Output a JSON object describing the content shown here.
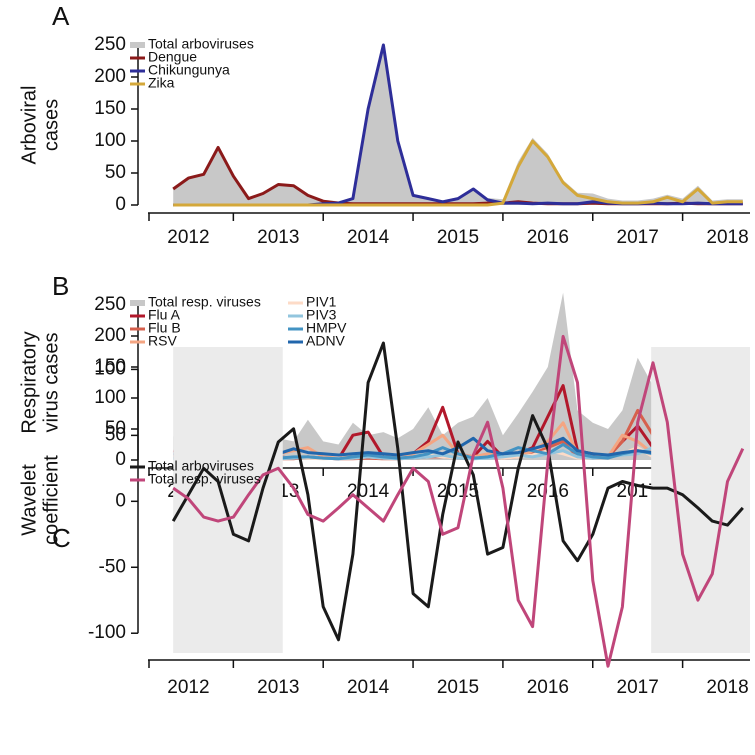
{
  "chart_data": [
    {
      "type": "line",
      "panel_label": "A",
      "ylabel": [
        "Arboviral",
        "cases"
      ],
      "x": [
        2012.33,
        2012.5,
        2012.67,
        2012.83,
        2013,
        2013.17,
        2013.33,
        2013.5,
        2013.67,
        2013.83,
        2014,
        2014.17,
        2014.33,
        2014.5,
        2014.67,
        2014.83,
        2015,
        2015.17,
        2015.33,
        2015.5,
        2015.67,
        2015.83,
        2016,
        2016.17,
        2016.33,
        2016.5,
        2016.67,
        2016.83,
        2017,
        2017.17,
        2017.33,
        2017.5,
        2017.67,
        2017.83,
        2018,
        2018.17,
        2018.33,
        2018.5,
        2018.67
      ],
      "xlim": [
        2012.05,
        2018.75
      ],
      "xticks": [
        {
          "value": 2012.5,
          "label": "2012"
        },
        {
          "value": 2013.5,
          "label": "2013"
        },
        {
          "value": 2014.5,
          "label": "2014"
        },
        {
          "value": 2015.5,
          "label": "2015"
        },
        {
          "value": 2016.5,
          "label": "2016"
        },
        {
          "value": 2017.5,
          "label": "2017"
        },
        {
          "value": 2018.5,
          "label": "2018"
        }
      ],
      "xtick_marks": [
        2013,
        2014,
        2015,
        2016,
        2017,
        2018
      ],
      "ylim": [
        0,
        250
      ],
      "yticks": [
        0,
        50,
        100,
        150,
        200,
        250
      ],
      "series": [
        {
          "name": "Total arboviruses",
          "color": "#c8c8c8",
          "area": true,
          "values": [
            25,
            42,
            48,
            90,
            45,
            10,
            18,
            32,
            30,
            15,
            8,
            6,
            12,
            152,
            252,
            102,
            17,
            12,
            7,
            12,
            27,
            11,
            9,
            68,
            105,
            80,
            39,
            19,
            18,
            10,
            7,
            7,
            10,
            16,
            10,
            30,
            7,
            9,
            9
          ]
        },
        {
          "name": "Dengue",
          "color": "#8b1a1a",
          "values": [
            25,
            42,
            48,
            90,
            45,
            10,
            18,
            32,
            30,
            15,
            6,
            3,
            2,
            2,
            2,
            2,
            2,
            2,
            2,
            2,
            2,
            3,
            3,
            5,
            3,
            2,
            2,
            2,
            3,
            2,
            2,
            2,
            2,
            2,
            3,
            2,
            2,
            2,
            2
          ]
        },
        {
          "name": "Chikungunya",
          "color": "#2e2e99",
          "values": [
            0,
            0,
            0,
            0,
            0,
            0,
            0,
            0,
            0,
            0,
            2,
            3,
            10,
            150,
            250,
            100,
            15,
            10,
            5,
            10,
            25,
            8,
            3,
            3,
            2,
            3,
            2,
            2,
            5,
            3,
            2,
            2,
            3,
            2,
            2,
            3,
            2,
            2,
            2
          ]
        },
        {
          "name": "Zika",
          "color": "#d4a83a",
          "values": [
            0,
            0,
            0,
            0,
            0,
            0,
            0,
            0,
            0,
            0,
            0,
            0,
            0,
            0,
            0,
            0,
            0,
            0,
            0,
            0,
            0,
            0,
            3,
            60,
            100,
            75,
            35,
            15,
            10,
            5,
            3,
            3,
            5,
            12,
            5,
            25,
            3,
            5,
            5
          ]
        }
      ]
    },
    {
      "type": "line",
      "panel_label": "B",
      "ylabel": [
        "Respiratory",
        "virus cases"
      ],
      "x": [
        2012.33,
        2012.5,
        2012.67,
        2012.83,
        2013,
        2013.17,
        2013.33,
        2013.5,
        2013.67,
        2013.83,
        2014,
        2014.17,
        2014.33,
        2014.5,
        2014.67,
        2014.83,
        2015,
        2015.17,
        2015.33,
        2015.5,
        2015.67,
        2015.83,
        2016,
        2016.17,
        2016.33,
        2016.5,
        2016.67,
        2016.83,
        2017,
        2017.17,
        2017.33,
        2017.5,
        2017.67,
        2017.83,
        2018,
        2018.17,
        2018.33,
        2018.5,
        2018.67
      ],
      "xlim": [
        2012.05,
        2018.75
      ],
      "xticks": [
        {
          "value": 2012.5,
          "label": "2012"
        },
        {
          "value": 2013.5,
          "label": "2013"
        },
        {
          "value": 2014.5,
          "label": "2014"
        },
        {
          "value": 2015.5,
          "label": "2015"
        },
        {
          "value": 2016.5,
          "label": "2016"
        },
        {
          "value": 2017.5,
          "label": "2017"
        },
        {
          "value": 2018.5,
          "label": "2018"
        }
      ],
      "xtick_marks": [
        2013,
        2014,
        2015,
        2016,
        2017,
        2018
      ],
      "ylim": [
        0,
        250
      ],
      "yticks": [
        0,
        50,
        100,
        150,
        200,
        250
      ],
      "series": [
        {
          "name": "Total resp. viruses",
          "color": "#c8c8c8",
          "area": true,
          "values": [
            38,
            35,
            30,
            40,
            85,
            75,
            40,
            35,
            30,
            65,
            30,
            25,
            60,
            40,
            45,
            35,
            50,
            85,
            40,
            60,
            70,
            100,
            40,
            75,
            110,
            150,
            270,
            80,
            60,
            50,
            80,
            165,
            120,
            70,
            55,
            45,
            40,
            115,
            90
          ]
        },
        {
          "name": "Flu A",
          "color": "#b2182b",
          "values": [
            15,
            10,
            8,
            35,
            50,
            30,
            8,
            5,
            3,
            5,
            3,
            2,
            40,
            45,
            5,
            3,
            10,
            30,
            85,
            10,
            5,
            30,
            5,
            10,
            20,
            70,
            120,
            15,
            10,
            5,
            30,
            55,
            20,
            5,
            5,
            5,
            10,
            20,
            40
          ]
        },
        {
          "name": "Flu B",
          "color": "#d6604d",
          "values": [
            5,
            3,
            2,
            10,
            20,
            10,
            3,
            2,
            2,
            5,
            3,
            2,
            2,
            3,
            2,
            2,
            3,
            5,
            5,
            3,
            2,
            5,
            3,
            5,
            10,
            20,
            30,
            5,
            3,
            5,
            30,
            80,
            40,
            5,
            3,
            5,
            10,
            15,
            25
          ]
        },
        {
          "name": "RSV",
          "color": "#f4a582",
          "values": [
            8,
            10,
            5,
            15,
            20,
            10,
            5,
            10,
            15,
            20,
            5,
            3,
            5,
            10,
            5,
            3,
            10,
            25,
            40,
            10,
            5,
            10,
            10,
            5,
            15,
            30,
            60,
            10,
            5,
            5,
            40,
            30,
            10,
            5,
            5,
            5,
            10,
            10,
            15
          ]
        },
        {
          "name": "PIV1",
          "color": "#fddbc7",
          "values": [
            3,
            3,
            5,
            5,
            8,
            5,
            3,
            3,
            5,
            3,
            2,
            3,
            3,
            5,
            3,
            3,
            5,
            8,
            5,
            3,
            3,
            5,
            3,
            5,
            8,
            15,
            10,
            3,
            3,
            5,
            10,
            20,
            5,
            3,
            3,
            3,
            5,
            5,
            5
          ]
        },
        {
          "name": "PIV3",
          "color": "#92c5de",
          "values": [
            2,
            2,
            3,
            3,
            5,
            3,
            2,
            2,
            3,
            5,
            3,
            2,
            3,
            5,
            3,
            2,
            3,
            5,
            8,
            3,
            2,
            3,
            5,
            8,
            5,
            10,
            15,
            5,
            3,
            5,
            8,
            10,
            20,
            35,
            10,
            5,
            8,
            10,
            8
          ]
        },
        {
          "name": "HMPV",
          "color": "#4393c3",
          "values": [
            3,
            3,
            3,
            5,
            8,
            5,
            3,
            3,
            5,
            5,
            3,
            2,
            5,
            8,
            5,
            3,
            5,
            10,
            20,
            10,
            3,
            5,
            10,
            20,
            15,
            10,
            25,
            10,
            5,
            3,
            10,
            15,
            10,
            5,
            25,
            35,
            15,
            10,
            8
          ]
        },
        {
          "name": "ADNV",
          "color": "#2166ac",
          "values": [
            10,
            8,
            10,
            12,
            10,
            15,
            12,
            10,
            18,
            12,
            10,
            8,
            10,
            12,
            10,
            8,
            12,
            15,
            10,
            20,
            35,
            15,
            10,
            12,
            18,
            25,
            35,
            15,
            10,
            8,
            12,
            15,
            12,
            10,
            15,
            18,
            15,
            12,
            10
          ]
        }
      ]
    },
    {
      "type": "line",
      "panel_label": "C",
      "ylabel": [
        "Wavelet",
        "coefficient"
      ],
      "x": [
        2012.33,
        2012.5,
        2012.67,
        2012.83,
        2013,
        2013.17,
        2013.33,
        2013.5,
        2013.67,
        2013.83,
        2014,
        2014.17,
        2014.33,
        2014.5,
        2014.67,
        2014.83,
        2015,
        2015.17,
        2015.33,
        2015.5,
        2015.67,
        2015.83,
        2016,
        2016.17,
        2016.33,
        2016.5,
        2016.67,
        2016.83,
        2017,
        2017.17,
        2017.33,
        2017.5,
        2017.67,
        2017.83,
        2018,
        2018.17,
        2018.33,
        2018.5,
        2018.67
      ],
      "xlim": [
        2012.05,
        2018.75
      ],
      "xticks": [
        {
          "value": 2012.5,
          "label": "2012"
        },
        {
          "value": 2013.5,
          "label": "2013"
        },
        {
          "value": 2014.5,
          "label": "2014"
        },
        {
          "value": 2015.5,
          "label": "2015"
        },
        {
          "value": 2016.5,
          "label": "2016"
        },
        {
          "value": 2017.5,
          "label": "2017"
        },
        {
          "value": 2018.5,
          "label": "2018"
        }
      ],
      "xtick_marks": [
        2013,
        2014,
        2015,
        2016,
        2017,
        2018
      ],
      "ylim": [
        -115,
        117
      ],
      "yticks": [
        -100,
        -50,
        0,
        50,
        100
      ],
      "shaded_regions": [
        [
          2012.33,
          2013.55
        ],
        [
          2017.65,
          2018.75
        ]
      ],
      "series": [
        {
          "name": "Total arboviruses",
          "color": "#1a1a1a",
          "values": [
            -15,
            5,
            25,
            15,
            -25,
            -30,
            10,
            45,
            55,
            5,
            -80,
            -105,
            -40,
            90,
            120,
            40,
            -70,
            -80,
            -10,
            45,
            20,
            -40,
            -35,
            25,
            65,
            40,
            -30,
            -45,
            -25,
            10,
            15,
            12,
            10,
            10,
            5,
            -5,
            -15,
            -18,
            -5
          ]
        },
        {
          "name": "Total resp. viruses",
          "color": "#c0467a",
          "values": [
            10,
            2,
            -12,
            -15,
            -12,
            5,
            20,
            25,
            10,
            -10,
            -15,
            -5,
            5,
            -5,
            -15,
            5,
            25,
            15,
            -25,
            -20,
            35,
            60,
            10,
            -75,
            -95,
            30,
            125,
            90,
            -60,
            -125,
            -80,
            60,
            105,
            60,
            -40,
            -75,
            -55,
            15,
            40
          ]
        }
      ]
    }
  ]
}
